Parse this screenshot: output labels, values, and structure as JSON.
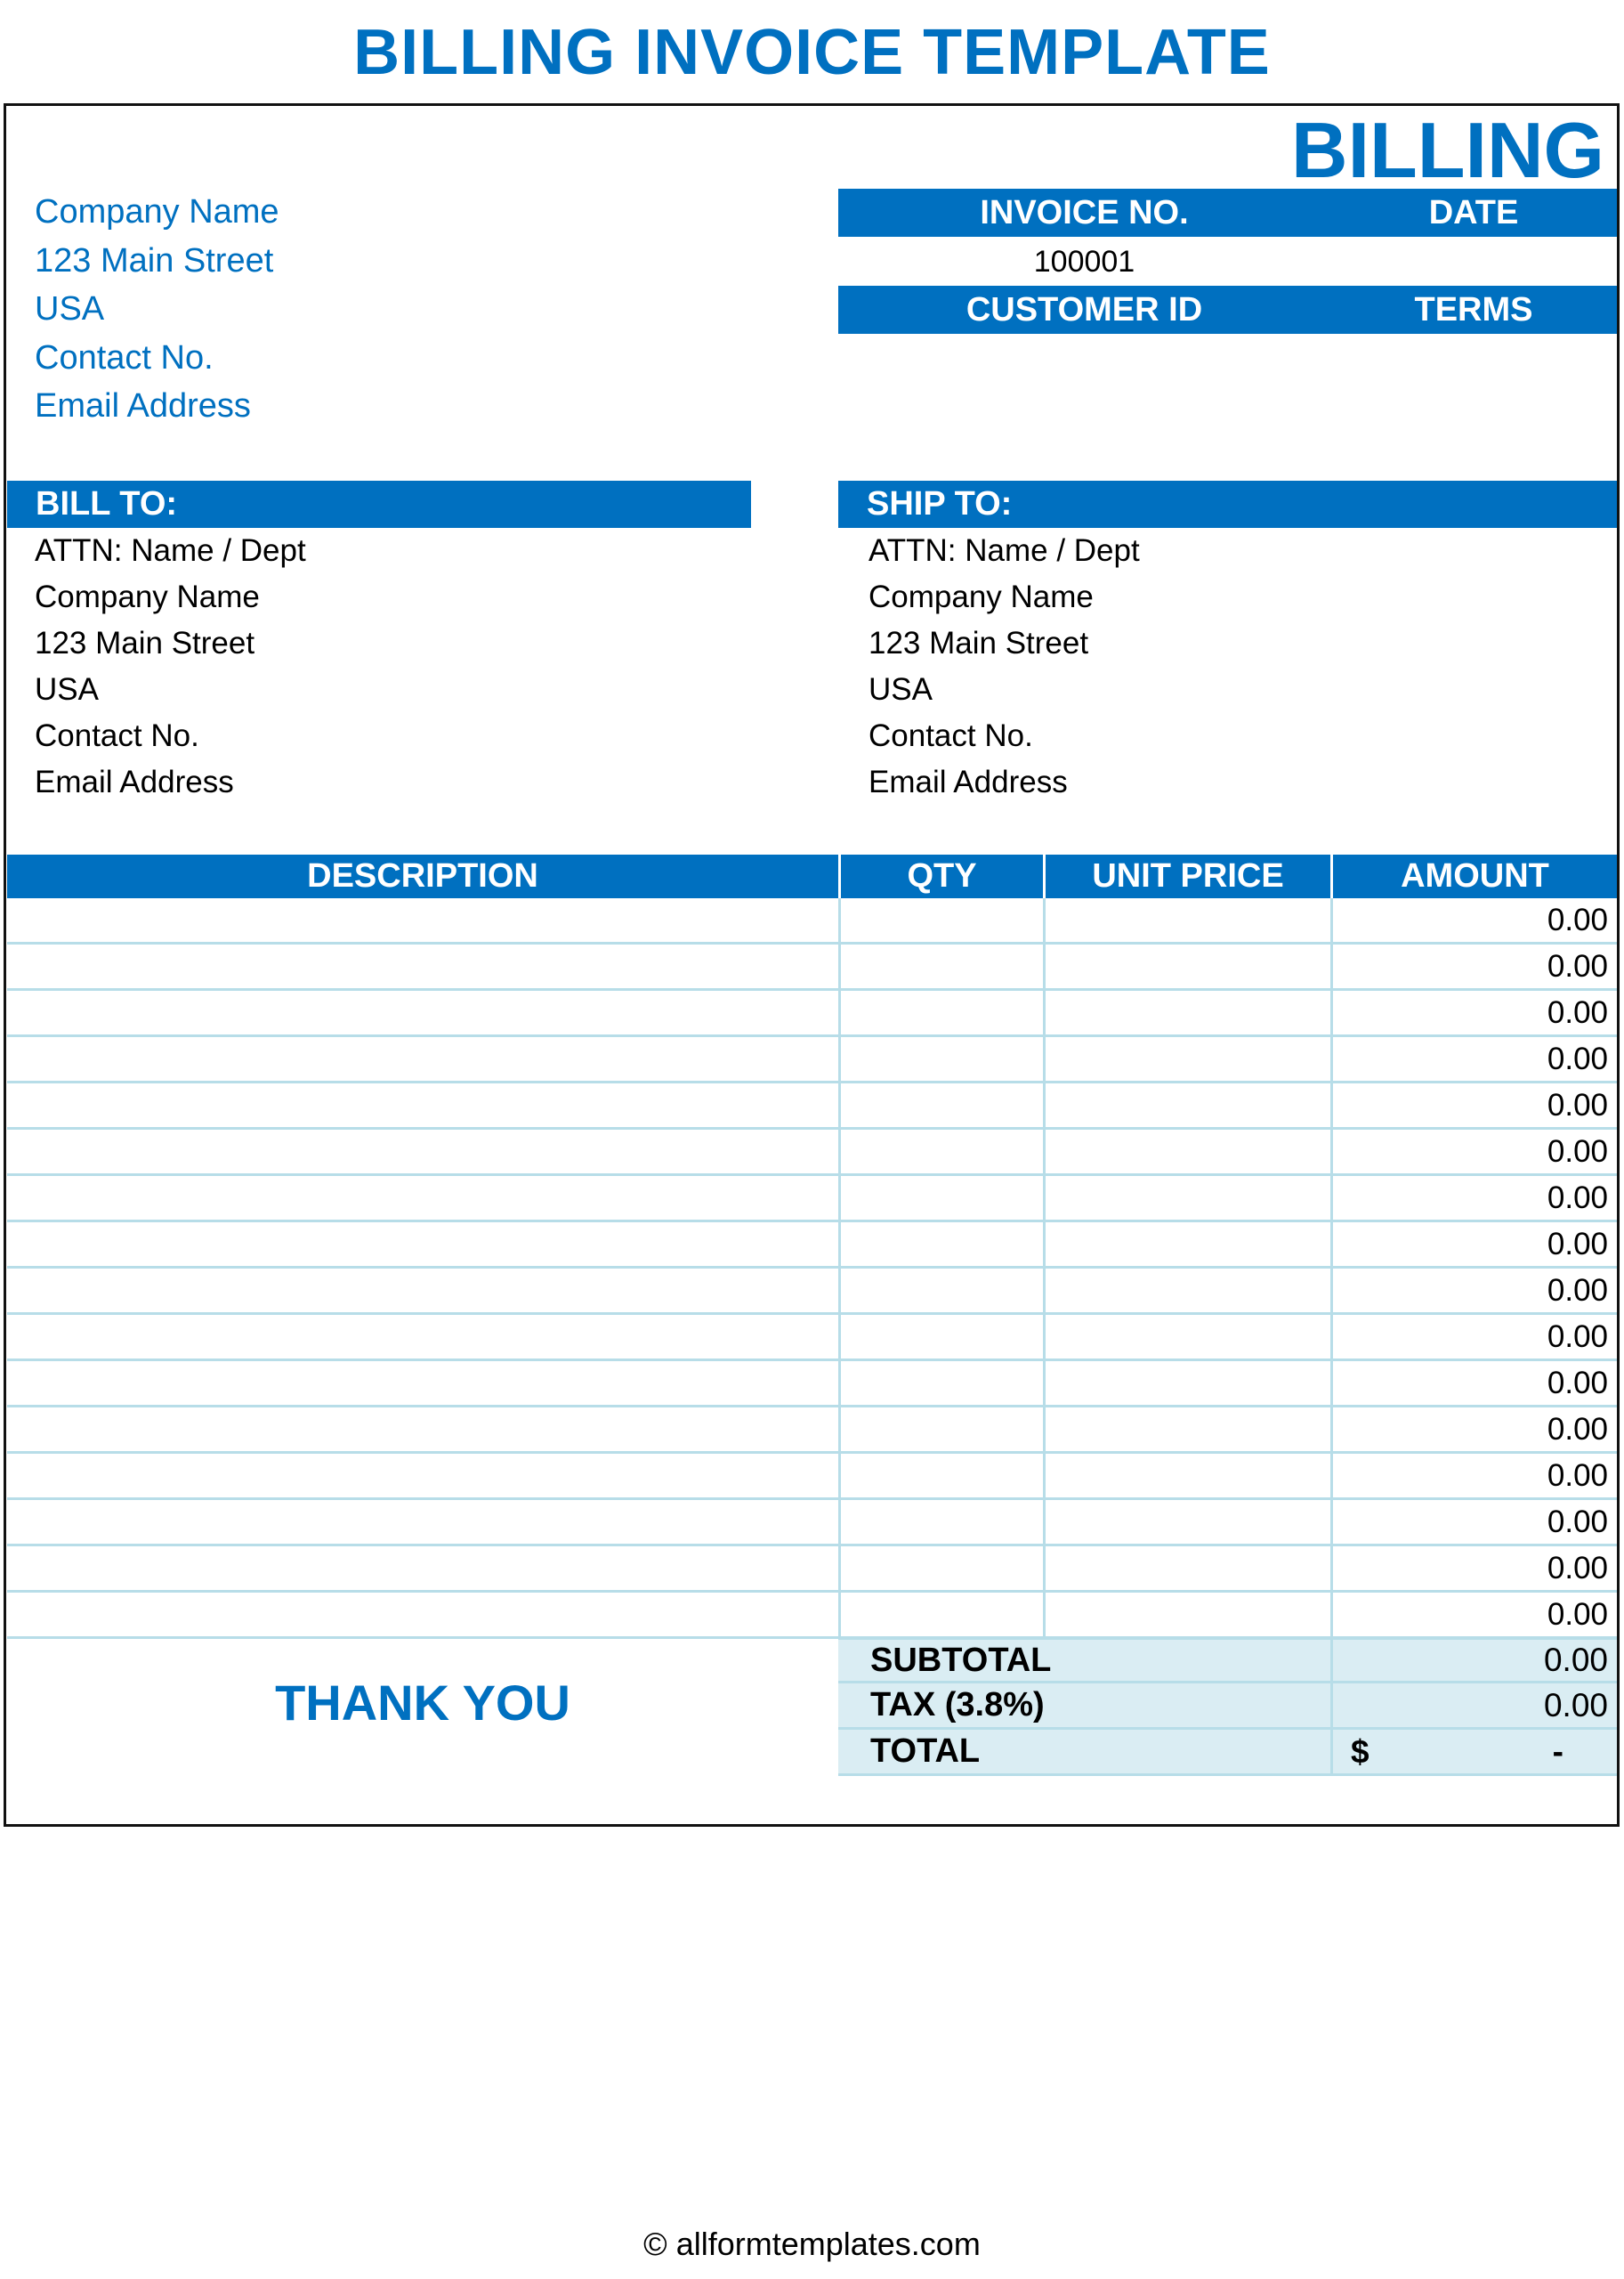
{
  "title": "BILLING INVOICE TEMPLATE",
  "doc_label": "BILLING",
  "from": [
    "Company Name",
    "123 Main Street",
    "USA",
    "Contact No.",
    "Email Address"
  ],
  "invoice_header": {
    "invoice_no_label": "INVOICE NO.",
    "date_label": "DATE",
    "invoice_no": "100001",
    "date": "",
    "customer_id_label": "CUSTOMER ID",
    "terms_label": "TERMS",
    "customer_id": "",
    "terms": ""
  },
  "bill_to": {
    "label": "BILL TO:",
    "lines": [
      "ATTN: Name / Dept",
      "Company Name",
      "123 Main Street",
      "USA",
      "Contact No.",
      "Email Address"
    ]
  },
  "ship_to": {
    "label": "SHIP TO:",
    "lines": [
      "ATTN: Name / Dept",
      "Company Name",
      "123 Main Street",
      "USA",
      "Contact No.",
      "Email Address"
    ]
  },
  "table": {
    "columns": [
      "DESCRIPTION",
      "QTY",
      "UNIT PRICE",
      "AMOUNT"
    ],
    "rows": [
      {
        "description": "",
        "qty": "",
        "unit_price": "",
        "amount": "0.00"
      },
      {
        "description": "",
        "qty": "",
        "unit_price": "",
        "amount": "0.00"
      },
      {
        "description": "",
        "qty": "",
        "unit_price": "",
        "amount": "0.00"
      },
      {
        "description": "",
        "qty": "",
        "unit_price": "",
        "amount": "0.00"
      },
      {
        "description": "",
        "qty": "",
        "unit_price": "",
        "amount": "0.00"
      },
      {
        "description": "",
        "qty": "",
        "unit_price": "",
        "amount": "0.00"
      },
      {
        "description": "",
        "qty": "",
        "unit_price": "",
        "amount": "0.00"
      },
      {
        "description": "",
        "qty": "",
        "unit_price": "",
        "amount": "0.00"
      },
      {
        "description": "",
        "qty": "",
        "unit_price": "",
        "amount": "0.00"
      },
      {
        "description": "",
        "qty": "",
        "unit_price": "",
        "amount": "0.00"
      },
      {
        "description": "",
        "qty": "",
        "unit_price": "",
        "amount": "0.00"
      },
      {
        "description": "",
        "qty": "",
        "unit_price": "",
        "amount": "0.00"
      },
      {
        "description": "",
        "qty": "",
        "unit_price": "",
        "amount": "0.00"
      },
      {
        "description": "",
        "qty": "",
        "unit_price": "",
        "amount": "0.00"
      },
      {
        "description": "",
        "qty": "",
        "unit_price": "",
        "amount": "0.00"
      },
      {
        "description": "",
        "qty": "",
        "unit_price": "",
        "amount": "0.00"
      }
    ]
  },
  "summary": {
    "subtotal_label": "SUBTOTAL",
    "subtotal": "0.00",
    "tax_label": "TAX (3.8%)",
    "tax": "0.00",
    "total_label": "TOTAL",
    "total_currency": "$",
    "total": "-"
  },
  "thank_you": "THANK YOU",
  "footer": "© allformtemplates.com",
  "colors": {
    "accent": "#0070c0",
    "summary_bg": "#daedf3",
    "grid": "#b7dde8"
  }
}
